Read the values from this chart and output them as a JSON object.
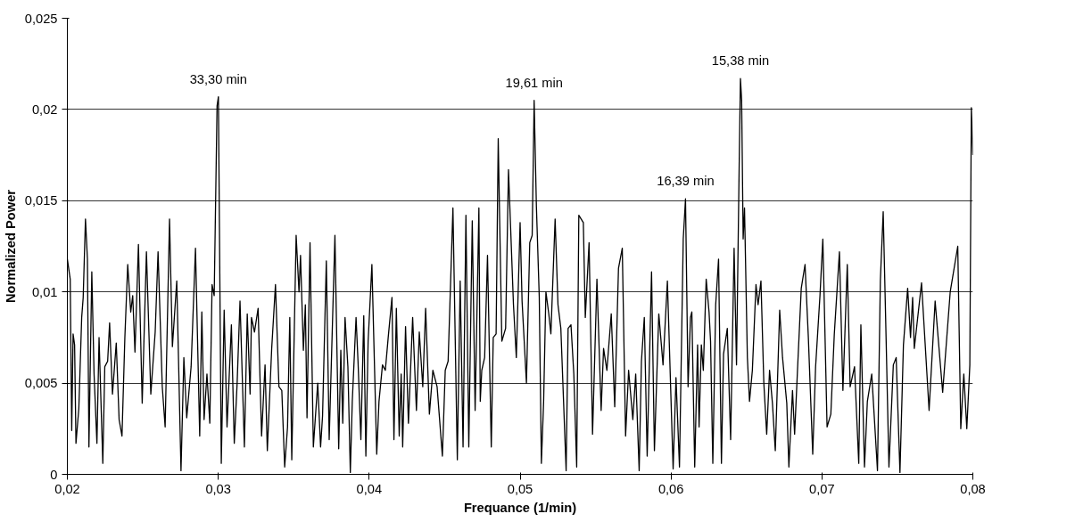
{
  "chart_data": {
    "type": "line",
    "xlabel": "Frequance (1/min)",
    "ylabel": "Normalized Power",
    "xlim": [
      0.02,
      0.08
    ],
    "ylim": [
      0,
      0.025
    ],
    "xticks": [
      {
        "value": 0.02,
        "label": "0,02"
      },
      {
        "value": 0.03,
        "label": "0,03"
      },
      {
        "value": 0.04,
        "label": "0,04"
      },
      {
        "value": 0.05,
        "label": "0,05"
      },
      {
        "value": 0.06,
        "label": "0,06"
      },
      {
        "value": 0.07,
        "label": "0,07"
      },
      {
        "value": 0.08,
        "label": "0,08"
      }
    ],
    "yticks": [
      0,
      {
        "value": 0.005,
        "label": "0,005"
      },
      {
        "value": 0.01,
        "label": "0,01"
      },
      {
        "value": 0.015,
        "label": "0,015"
      },
      {
        "value": 0.02,
        "label": "0,02"
      },
      {
        "value": 0.025,
        "label": "0,025"
      }
    ],
    "grid": "y",
    "annotations": [
      {
        "text": "33,30 min",
        "x": 0.03001,
        "y": 0.0207
      },
      {
        "text": "19,61 min",
        "x": 0.05093,
        "y": 0.0205
      },
      {
        "text": "16,39 min",
        "x": 0.06096,
        "y": 0.0151
      },
      {
        "text": "15,38 min",
        "x": 0.0646,
        "y": 0.0217
      }
    ],
    "x": [
      0.02,
      0.02019,
      0.02029,
      0.02038,
      0.02048,
      0.02057,
      0.02076,
      0.02095,
      0.02105,
      0.0212,
      0.02133,
      0.02143,
      0.02162,
      0.02177,
      0.02196,
      0.0221,
      0.02235,
      0.02248,
      0.02267,
      0.0228,
      0.02299,
      0.02324,
      0.02343,
      0.02362,
      0.02381,
      0.024,
      0.0242,
      0.02433,
      0.02448,
      0.02471,
      0.02496,
      0.02524,
      0.02553,
      0.02582,
      0.02601,
      0.02629,
      0.02648,
      0.02677,
      0.02696,
      0.02725,
      0.02753,
      0.02772,
      0.02791,
      0.0282,
      0.02849,
      0.02877,
      0.02891,
      0.02906,
      0.02925,
      0.02944,
      0.02959,
      0.02973,
      0.02992,
      0.03001,
      0.0302,
      0.03039,
      0.03058,
      0.03087,
      0.03106,
      0.03125,
      0.03144,
      0.03173,
      0.03192,
      0.03211,
      0.0322,
      0.0324,
      0.03264,
      0.03287,
      0.0331,
      0.03325,
      0.03354,
      0.03379,
      0.03402,
      0.03421,
      0.0344,
      0.03459,
      0.03474,
      0.03487,
      0.03516,
      0.03535,
      0.03545,
      0.03564,
      0.03577,
      0.03588,
      0.03608,
      0.0363,
      0.03659,
      0.03678,
      0.03691,
      0.03716,
      0.03735,
      0.03773,
      0.03798,
      0.03812,
      0.03825,
      0.0384,
      0.03859,
      0.03875,
      0.03888,
      0.03913,
      0.03926,
      0.03945,
      0.03964,
      0.03978,
      0.03993,
      0.04018,
      0.0405,
      0.04065,
      0.04088,
      0.04107,
      0.04126,
      0.04151,
      0.04164,
      0.0418,
      0.04199,
      0.04212,
      0.04222,
      0.04241,
      0.0426,
      0.04288,
      0.04313,
      0.04332,
      0.04355,
      0.04374,
      0.04399,
      0.04422,
      0.0445,
      0.04485,
      0.04504,
      0.04523,
      0.04555,
      0.04584,
      0.04603,
      0.04622,
      0.04641,
      0.0466,
      0.04683,
      0.04702,
      0.04727,
      0.04736,
      0.04746,
      0.04765,
      0.04784,
      0.04809,
      0.04822,
      0.04841,
      0.04855,
      0.04879,
      0.04904,
      0.04923,
      0.04956,
      0.04975,
      0.05,
      0.05013,
      0.05042,
      0.05064,
      0.0508,
      0.05093,
      0.05108,
      0.05127,
      0.05141,
      0.05156,
      0.05171,
      0.0519,
      0.05204,
      0.05232,
      0.05251,
      0.0527,
      0.05305,
      0.05318,
      0.05337,
      0.05356,
      0.05375,
      0.05389,
      0.05419,
      0.05432,
      0.05457,
      0.0548,
      0.05509,
      0.05537,
      0.05553,
      0.05575,
      0.05604,
      0.05627,
      0.05652,
      0.05677,
      0.05699,
      0.05719,
      0.05747,
      0.05766,
      0.05789,
      0.05804,
      0.05823,
      0.05842,
      0.05871,
      0.0589,
      0.05919,
      0.05947,
      0.05976,
      0.06014,
      0.06033,
      0.06056,
      0.06081,
      0.06096,
      0.06113,
      0.06129,
      0.06138,
      0.06157,
      0.06176,
      0.06186,
      0.06201,
      0.06214,
      0.06233,
      0.06252,
      0.06262,
      0.06277,
      0.06296,
      0.06315,
      0.06334,
      0.06348,
      0.06373,
      0.06395,
      0.06418,
      0.06434,
      0.06453,
      0.0646,
      0.06468,
      0.06478,
      0.06487,
      0.06506,
      0.0652,
      0.06539,
      0.06563,
      0.06577,
      0.06596,
      0.06615,
      0.06634,
      0.06653,
      0.06672,
      0.06691,
      0.0672,
      0.06739,
      0.06767,
      0.06781,
      0.06805,
      0.06819,
      0.06838,
      0.06863,
      0.06888,
      0.0691,
      0.06939,
      0.06958,
      0.06987,
      0.07006,
      0.07034,
      0.07059,
      0.07082,
      0.07116,
      0.07139,
      0.07168,
      0.07187,
      0.07216,
      0.07244,
      0.07258,
      0.07282,
      0.07301,
      0.0733,
      0.07368,
      0.07387,
      0.07406,
      0.07425,
      0.07444,
      0.07473,
      0.07492,
      0.07517,
      0.0754,
      0.07568,
      0.07587,
      0.07601,
      0.07612,
      0.0766,
      0.0771,
      0.0775,
      0.078,
      0.0785,
      0.079,
      0.0792,
      0.0794,
      0.0796,
      0.0798,
      0.0799,
      0.08
    ],
    "series": [
      {
        "color": "#000000",
        "values": [
          0.0118,
          0.0107,
          0.0024,
          0.0077,
          0.0071,
          0.0017,
          0.0036,
          0.0086,
          0.0097,
          0.014,
          0.0118,
          0.0015,
          0.0111,
          0.0055,
          0.0017,
          0.0075,
          0.0006,
          0.0059,
          0.0062,
          0.0083,
          0.0044,
          0.0072,
          0.003,
          0.0021,
          0.0075,
          0.0115,
          0.0089,
          0.0098,
          0.0067,
          0.0126,
          0.0039,
          0.0122,
          0.0044,
          0.0078,
          0.0122,
          0.0048,
          0.0026,
          0.014,
          0.007,
          0.0106,
          0.0002,
          0.0064,
          0.0031,
          0.0059,
          0.0124,
          0.0021,
          0.0089,
          0.003,
          0.0055,
          0.0028,
          0.0104,
          0.0098,
          0.0202,
          0.0207,
          0.0006,
          0.009,
          0.0026,
          0.0082,
          0.0017,
          0.005,
          0.0095,
          0.0015,
          0.0088,
          0.0044,
          0.0086,
          0.0078,
          0.0091,
          0.0021,
          0.006,
          0.0013,
          0.0069,
          0.0104,
          0.0048,
          0.0046,
          0.0004,
          0.0026,
          0.0086,
          0.0008,
          0.0131,
          0.01,
          0.012,
          0.0068,
          0.0093,
          0.0031,
          0.0127,
          0.0015,
          0.005,
          0.0015,
          0.0032,
          0.0117,
          0.0019,
          0.0131,
          0.0014,
          0.0068,
          0.0028,
          0.0086,
          0.0059,
          0.0001,
          0.004,
          0.0086,
          0.0062,
          0.0019,
          0.0087,
          0.001,
          0.0073,
          0.0115,
          0.0011,
          0.004,
          0.006,
          0.0057,
          0.0075,
          0.0097,
          0.0019,
          0.0091,
          0.0021,
          0.0055,
          0.0015,
          0.0081,
          0.0028,
          0.0086,
          0.0035,
          0.0078,
          0.0048,
          0.0091,
          0.0033,
          0.0057,
          0.0048,
          0.001,
          0.0057,
          0.0062,
          0.0146,
          0.0008,
          0.0106,
          0.0015,
          0.0142,
          0.0015,
          0.0139,
          0.0035,
          0.0146,
          0.004,
          0.0057,
          0.0064,
          0.012,
          0.0015,
          0.0075,
          0.0077,
          0.0184,
          0.0073,
          0.008,
          0.0167,
          0.0093,
          0.0064,
          0.0138,
          0.0095,
          0.005,
          0.0127,
          0.0131,
          0.0205,
          0.0147,
          0.0097,
          0.0006,
          0.004,
          0.01,
          0.0088,
          0.0077,
          0.014,
          0.0093,
          0.008,
          0.0002,
          0.008,
          0.0082,
          0.0055,
          0.0004,
          0.0142,
          0.0138,
          0.0086,
          0.0127,
          0.0022,
          0.0107,
          0.0035,
          0.0069,
          0.0057,
          0.0088,
          0.0037,
          0.0113,
          0.0124,
          0.0021,
          0.0057,
          0.003,
          0.0055,
          0.0002,
          0.0062,
          0.0086,
          0.001,
          0.0111,
          0.0013,
          0.0088,
          0.006,
          0.0106,
          0.0003,
          0.0053,
          0.0004,
          0.0129,
          0.0151,
          0.0048,
          0.0086,
          0.0089,
          0.0004,
          0.0071,
          0.0026,
          0.0071,
          0.0057,
          0.0107,
          0.0089,
          0.0073,
          0.0006,
          0.0093,
          0.0118,
          0.0006,
          0.0066,
          0.008,
          0.0019,
          0.0124,
          0.006,
          0.0178,
          0.0217,
          0.0205,
          0.0129,
          0.0146,
          0.0064,
          0.004,
          0.0057,
          0.0104,
          0.0093,
          0.0106,
          0.005,
          0.0022,
          0.0057,
          0.0039,
          0.0013,
          0.009,
          0.0064,
          0.0039,
          0.0004,
          0.0046,
          0.0022,
          0.0057,
          0.0102,
          0.0115,
          0.0075,
          0.0011,
          0.0059,
          0.0098,
          0.0129,
          0.0026,
          0.0033,
          0.0077,
          0.0122,
          0.0046,
          0.0115,
          0.0048,
          0.0059,
          0.0006,
          0.0082,
          0.0004,
          0.004,
          0.0055,
          0.0002,
          0.0106,
          0.0144,
          0.0075,
          0.0004,
          0.006,
          0.0064,
          0.0001,
          0.0071,
          0.0102,
          0.0075,
          0.0097,
          0.0069,
          0.0105,
          0.0035,
          0.0095,
          0.0045,
          0.01,
          0.0125,
          0.0025,
          0.0055,
          0.0025,
          0.006,
          0.0201,
          0.0175
        ]
      }
    ]
  }
}
